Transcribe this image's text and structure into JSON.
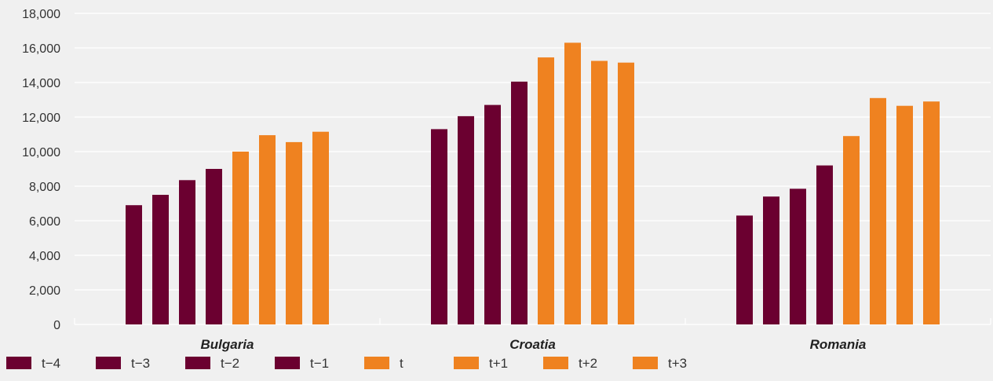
{
  "chart_data": {
    "type": "bar",
    "categories": [
      "Bulgaria",
      "Croatia",
      "Romania"
    ],
    "series": [
      {
        "name": "t−4",
        "color": "#6b0030",
        "values": [
          6900,
          11300,
          6300
        ]
      },
      {
        "name": "t−3",
        "color": "#6b0030",
        "values": [
          7500,
          12050,
          7400
        ]
      },
      {
        "name": "t−2",
        "color": "#6b0030",
        "values": [
          8350,
          12700,
          7850
        ]
      },
      {
        "name": "t−1",
        "color": "#6b0030",
        "values": [
          9000,
          14050,
          9200
        ]
      },
      {
        "name": "t",
        "color": "#ef8220",
        "values": [
          10000,
          15450,
          10900
        ]
      },
      {
        "name": "t+1",
        "color": "#ef8220",
        "values": [
          10950,
          16300,
          13100
        ]
      },
      {
        "name": "t+2",
        "color": "#ef8220",
        "values": [
          10550,
          15250,
          12650
        ]
      },
      {
        "name": "t+3",
        "color": "#ef8220",
        "values": [
          11150,
          15150,
          12900
        ]
      }
    ],
    "ylim": [
      0,
      18000
    ],
    "yticks": [
      "0",
      "2,000",
      "4,000",
      "6,000",
      "8,000",
      "10,000",
      "12,000",
      "14,000",
      "16,000",
      "18,000"
    ],
    "ytick_values": [
      0,
      2000,
      4000,
      6000,
      8000,
      10000,
      12000,
      14000,
      16000,
      18000
    ],
    "grid": true,
    "legend_position": "bottom-left",
    "title": "",
    "xlabel": "",
    "ylabel": ""
  }
}
